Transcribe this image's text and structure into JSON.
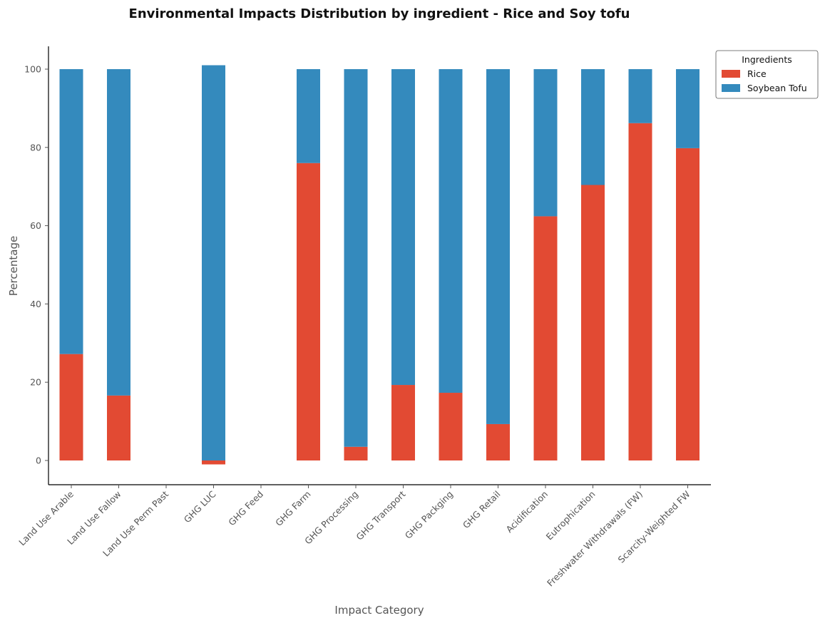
{
  "chart_data": {
    "type": "bar",
    "stacked": true,
    "title": "Environmental Impacts Distribution by ingredient - Rice and Soy tofu",
    "xlabel": "Impact Category",
    "ylabel": "Percentage",
    "ylim": [
      -6,
      106
    ],
    "yticks": [
      0,
      20,
      40,
      60,
      80,
      100
    ],
    "grid": false,
    "legend": {
      "title": "Ingredients",
      "placement": "upper-right-outside"
    },
    "categories": [
      "Land Use Arable",
      "Land Use Fallow",
      "Land Use Perm Past",
      "GHG LUC",
      "GHG Feed",
      "GHG Farm",
      "GHG Processing",
      "GHG Transport",
      "GHG Packging",
      "GHG Retail",
      "Acidification",
      "Eutrophication",
      "Freshwater Withdrawals (FW)",
      "Scarcity-Weighted FW"
    ],
    "series": [
      {
        "name": "Rice",
        "color": "#E24A33",
        "values": [
          27.2,
          16.6,
          0,
          -1.0,
          0,
          76.0,
          3.5,
          19.3,
          17.3,
          9.3,
          62.4,
          70.4,
          86.2,
          79.8
        ]
      },
      {
        "name": "Soybean Tofu",
        "color": "#348ABD",
        "values": [
          72.8,
          83.4,
          0,
          101.0,
          0,
          24.0,
          96.5,
          80.7,
          82.7,
          90.7,
          37.6,
          29.6,
          13.8,
          20.2
        ]
      }
    ]
  }
}
